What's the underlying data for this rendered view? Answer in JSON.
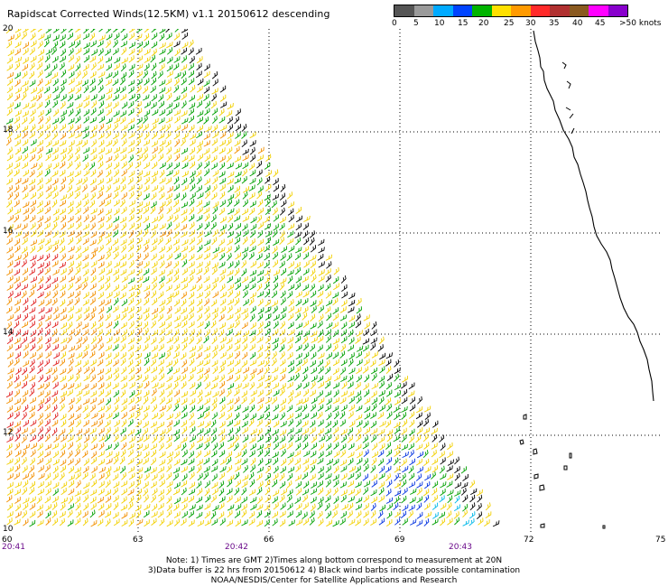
{
  "title": "Rapidscat Corrected Winds(12.5KM) v1.1 20150612 descending",
  "legend": {
    "labels": [
      "0",
      "5",
      "10",
      "15",
      "20",
      "25",
      "30",
      "35",
      "40",
      "45",
      ">50 knots"
    ],
    "colors": [
      "#555555",
      "#9a9a9a",
      "#00aaff",
      "#0044ff",
      "#00b400",
      "#ffe000",
      "#ff9a00",
      "#ff2a2a",
      "#b03030",
      "#8a5a20",
      "#ff00ff",
      "#8800cc"
    ]
  },
  "lat_labels": [
    "20",
    "18",
    "16",
    "14",
    "12",
    "10"
  ],
  "lon_labels": [
    "60",
    "63",
    "66",
    "69",
    "72",
    "75"
  ],
  "time_labels": [
    "20:41",
    "20:42",
    "20:43"
  ],
  "notes": [
    "Note: 1) Times are GMT 2)Times along bottom correspond to measurement at 20N",
    "3)Data buffer is 22 hrs from 20150612 4) Black wind barbs indicate possible contamination",
    "NOAA/NESDIS/Center for Satellite Applications and Research"
  ],
  "map": {
    "grid_lines": "dotted",
    "barb_colors": {
      "green": "#00a000",
      "yellow": "#f2d000",
      "orange": "#f29000",
      "red": "#e02020",
      "blue": "#0030e0",
      "cyan": "#00b8e8",
      "black": "#000000"
    }
  }
}
